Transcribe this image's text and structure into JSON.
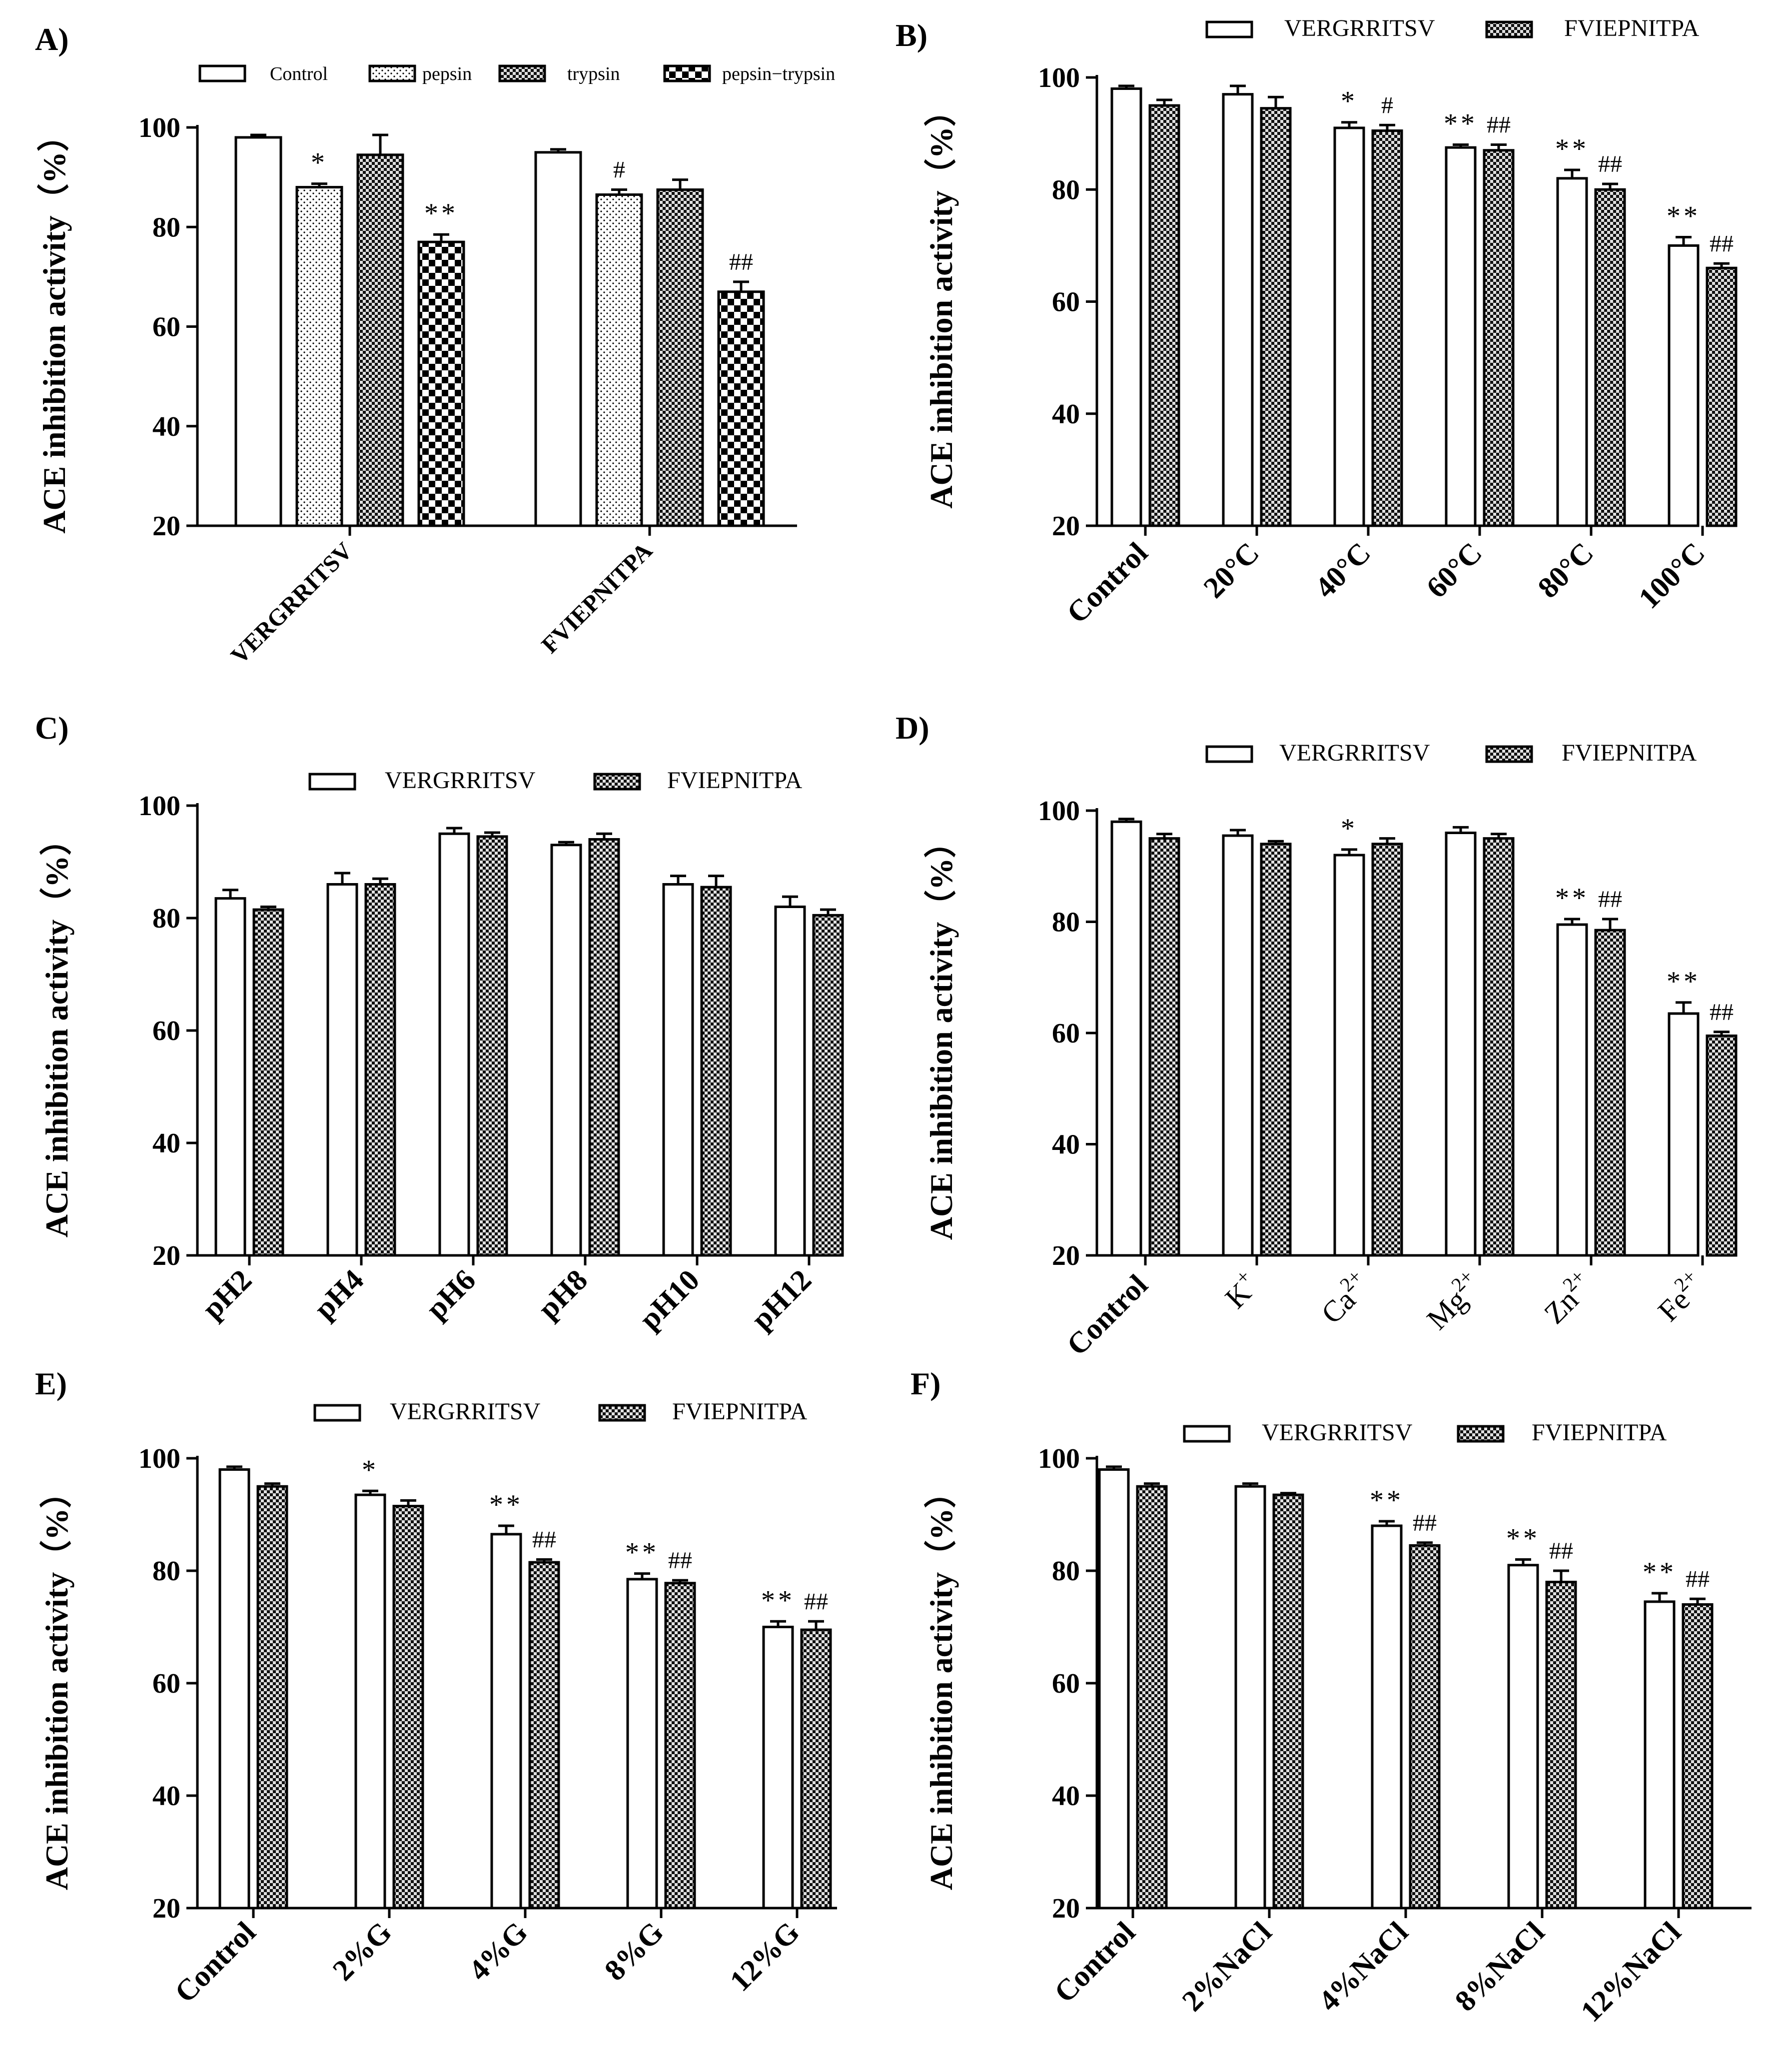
{
  "figure": {
    "colors": {
      "ink": "#000000",
      "bar_fill": "#ffffff",
      "dense_check_dark": "#111111",
      "dense_check_light": "#dedede"
    }
  },
  "chart_data": [
    {
      "panel": "A)",
      "type": "bar",
      "ylabel": "ACE inhibition activity（%）",
      "ylim": [
        20,
        100
      ],
      "yticks": [
        "20",
        "40",
        "60",
        "80",
        "100"
      ],
      "categories": [
        "VERGRRITSV",
        "FVIEPNITPA"
      ],
      "legend_position": "top",
      "series": [
        {
          "name": "Control",
          "pattern": "white",
          "values": [
            98,
            95
          ],
          "errors": [
            0.5,
            0.6
          ],
          "marks": [
            "",
            ""
          ]
        },
        {
          "name": "pepsin",
          "pattern": "dots",
          "values": [
            88,
            86.5
          ],
          "errors": [
            0.7,
            1.0
          ],
          "marks": [
            "*",
            "#"
          ]
        },
        {
          "name": "trypsin",
          "pattern": "check",
          "values": [
            94.5,
            87.5
          ],
          "errors": [
            4,
            2
          ]
        },
        {
          "name": "pepsin−trypsin",
          "pattern": "bigcheck",
          "values": [
            77,
            67
          ],
          "errors": [
            1.5,
            2
          ],
          "marks": [
            "**",
            "##"
          ]
        }
      ]
    },
    {
      "panel": "B)",
      "type": "bar",
      "ylabel": "ACE inhibition activity（%）",
      "ylim": [
        20,
        100
      ],
      "yticks": [
        "20",
        "40",
        "60",
        "80",
        "100"
      ],
      "categories": [
        "Control",
        "20°C",
        "40°C",
        "60°C",
        "80°C",
        "100°C"
      ],
      "legend_position": "top",
      "series": [
        {
          "name": "VERGRRITSV",
          "pattern": "white",
          "values": [
            98,
            97,
            91,
            87.5,
            82,
            70
          ],
          "errors": [
            0.5,
            1.5,
            1.0,
            0.5,
            1.5,
            1.5
          ],
          "marks": [
            "",
            "",
            "*",
            "**",
            "**",
            "**"
          ]
        },
        {
          "name": "FVIEPNITPA",
          "pattern": "check",
          "values": [
            95,
            94.5,
            90.5,
            87,
            80,
            66
          ],
          "errors": [
            1.0,
            2.0,
            1.0,
            1.0,
            1.0,
            0.8
          ],
          "marks": [
            "",
            "",
            "#",
            "##",
            "##",
            "##"
          ]
        }
      ]
    },
    {
      "panel": "C)",
      "type": "bar",
      "ylabel": "ACE inhibition activity（%）",
      "ylim": [
        20,
        100
      ],
      "yticks": [
        "20",
        "40",
        "60",
        "80",
        "100"
      ],
      "categories": [
        "pH2",
        "pH4",
        "pH6",
        "pH8",
        "pH10",
        "pH12"
      ],
      "legend_position": "top",
      "series": [
        {
          "name": "VERGRRITSV",
          "pattern": "white",
          "values": [
            83.5,
            86,
            95,
            93,
            86,
            82
          ],
          "errors": [
            1.5,
            2,
            1,
            0.5,
            1.5,
            1.8
          ],
          "marks": [
            "",
            "",
            "",
            "",
            "",
            ""
          ]
        },
        {
          "name": "FVIEPNITPA",
          "pattern": "check",
          "values": [
            81.5,
            86,
            94.5,
            94,
            85.5,
            80.5
          ],
          "errors": [
            0.5,
            1,
            0.7,
            1,
            2,
            1
          ],
          "marks": [
            "",
            "",
            "",
            "",
            "",
            ""
          ]
        }
      ]
    },
    {
      "panel": "D)",
      "type": "bar",
      "ylabel": "ACE inhibition activity（%）",
      "ylim": [
        20,
        100
      ],
      "yticks": [
        "20",
        "40",
        "60",
        "80",
        "100"
      ],
      "categories": [
        "Control",
        "K",
        "Ca",
        "Mg",
        "Zn",
        "Fe"
      ],
      "category_superscripts": [
        "",
        "+",
        "2+",
        "2+",
        "2+",
        "2+"
      ],
      "legend_position": "top",
      "series": [
        {
          "name": "VERGRRITSV",
          "pattern": "white",
          "values": [
            98,
            95.5,
            92,
            96,
            79.5,
            63.5
          ],
          "errors": [
            0.5,
            1,
            1,
            1,
            1,
            2
          ],
          "marks": [
            "",
            "",
            "*",
            "",
            "**",
            "**"
          ]
        },
        {
          "name": "FVIEPNITPA",
          "pattern": "check",
          "values": [
            95,
            94,
            94,
            95,
            78.5,
            59.5
          ],
          "errors": [
            0.8,
            0.5,
            1,
            0.8,
            2,
            0.7
          ],
          "marks": [
            "",
            "",
            "",
            "",
            "##",
            "##"
          ]
        }
      ]
    },
    {
      "panel": "E)",
      "type": "bar",
      "ylabel": "ACE inhibition activity（%）",
      "ylim": [
        20,
        100
      ],
      "yticks": [
        "20",
        "40",
        "60",
        "80",
        "100"
      ],
      "categories": [
        "Control",
        "2%G",
        "4%G",
        "8%G",
        "12%G"
      ],
      "legend_position": "top",
      "series": [
        {
          "name": "VERGRRITSV",
          "pattern": "white",
          "values": [
            98,
            93.5,
            86.5,
            78.5,
            70
          ],
          "errors": [
            0.5,
            0.7,
            1.5,
            1,
            1
          ],
          "marks": [
            "",
            "*",
            "**",
            "**",
            "**"
          ]
        },
        {
          "name": "FVIEPNITPA",
          "pattern": "check",
          "values": [
            95,
            91.5,
            81.5,
            77.8,
            69.5
          ],
          "errors": [
            0.5,
            1,
            0.5,
            0.5,
            1.5
          ],
          "marks": [
            "",
            "",
            "##",
            "##",
            "##"
          ]
        }
      ]
    },
    {
      "panel": "F)",
      "type": "bar",
      "ylabel": "ACE inhibition activity（%）",
      "ylim": [
        20,
        100
      ],
      "yticks": [
        "20",
        "40",
        "60",
        "80",
        "100"
      ],
      "categories": [
        "Control",
        "2%NaCl",
        "4%NaCl",
        "8%NaCl",
        "12%NaCl"
      ],
      "legend_position": "top",
      "series": [
        {
          "name": "VERGRRITSV",
          "pattern": "white",
          "values": [
            98,
            95,
            88,
            81,
            74.5
          ],
          "errors": [
            0.5,
            0.5,
            0.8,
            1,
            1.5
          ],
          "marks": [
            "",
            "",
            "**",
            "**",
            "**"
          ]
        },
        {
          "name": "FVIEPNITPA",
          "pattern": "check",
          "values": [
            95,
            93.5,
            84.5,
            78,
            74
          ],
          "errors": [
            0.5,
            0.3,
            0.5,
            2,
            1
          ],
          "marks": [
            "",
            "",
            "##",
            "##",
            "##"
          ]
        }
      ]
    }
  ]
}
